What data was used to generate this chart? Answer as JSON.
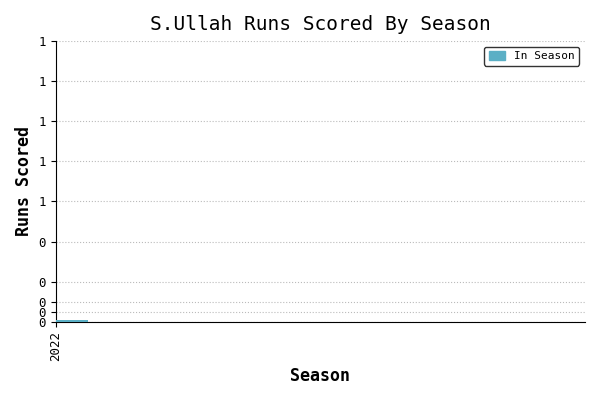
{
  "title": "S.Ullah Runs Scored By Season",
  "xlabel": "Season",
  "ylabel": "Runs Scored",
  "bar_color": "#5bafc5",
  "legend_label": "In Season",
  "seasons": [
    2022
  ],
  "values": [
    0.008
  ],
  "xlim": [
    2022,
    2024.5
  ],
  "ylim": [
    0,
    1.4
  ],
  "ytick_vals": [
    1.4,
    1.2,
    1.0,
    0.8,
    0.6,
    0.4,
    0.2,
    0.1,
    0.05,
    0.0
  ],
  "ytick_labels": [
    "1",
    "1",
    "1",
    "1",
    "1",
    "0",
    "0",
    "0",
    "0",
    "0"
  ],
  "background_color": "#ffffff",
  "grid_color": "#bbbbbb",
  "title_fontsize": 14,
  "axis_label_fontsize": 12,
  "font_family": "monospace"
}
